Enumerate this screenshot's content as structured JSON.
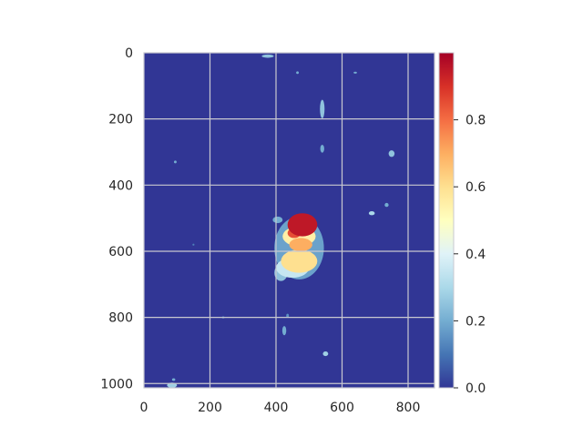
{
  "chart_data": {
    "type": "heatmap",
    "title": "",
    "xlabel": "",
    "ylabel": "",
    "xlim": [
      0,
      880
    ],
    "ylim": [
      1013,
      0
    ],
    "x_ticks": [
      0,
      200,
      400,
      600,
      800
    ],
    "y_ticks": [
      0,
      200,
      400,
      600,
      800,
      1000
    ],
    "x_tick_labels": [
      "0",
      "200",
      "400",
      "600",
      "800"
    ],
    "y_tick_labels": [
      "0",
      "200",
      "400",
      "600",
      "800",
      "1000"
    ],
    "grid": true,
    "colormap": "RdYlBu_r",
    "colorbar": {
      "vmin": 0.0,
      "vmax": 1.0,
      "ticks": [
        0.0,
        0.2,
        0.4,
        0.6,
        0.8
      ],
      "tick_labels": [
        "0.0",
        "0.2",
        "0.4",
        "0.6",
        "0.8"
      ]
    },
    "background_value": 0.0,
    "hotspots": [
      {
        "x": 480,
        "y": 520,
        "rx": 45,
        "ry": 35,
        "value": 0.95
      },
      {
        "x": 455,
        "y": 545,
        "rx": 20,
        "ry": 15,
        "value": 0.85
      },
      {
        "x": 475,
        "y": 580,
        "rx": 35,
        "ry": 20,
        "value": 0.7
      },
      {
        "x": 470,
        "y": 555,
        "rx": 50,
        "ry": 30,
        "value": 0.55
      },
      {
        "x": 470,
        "y": 630,
        "rx": 55,
        "ry": 35,
        "value": 0.6
      },
      {
        "x": 450,
        "y": 650,
        "rx": 50,
        "ry": 30,
        "value": 0.35
      },
      {
        "x": 470,
        "y": 590,
        "rx": 75,
        "ry": 95,
        "value": 0.18
      },
      {
        "x": 415,
        "y": 665,
        "rx": 20,
        "ry": 25,
        "value": 0.25
      },
      {
        "x": 405,
        "y": 505,
        "rx": 15,
        "ry": 10,
        "value": 0.2
      },
      {
        "x": 540,
        "y": 170,
        "rx": 7,
        "ry": 28,
        "value": 0.25
      },
      {
        "x": 540,
        "y": 290,
        "rx": 6,
        "ry": 12,
        "value": 0.2
      },
      {
        "x": 750,
        "y": 305,
        "rx": 9,
        "ry": 10,
        "value": 0.25
      },
      {
        "x": 690,
        "y": 485,
        "rx": 9,
        "ry": 6,
        "value": 0.3
      },
      {
        "x": 735,
        "y": 460,
        "rx": 6,
        "ry": 6,
        "value": 0.2
      },
      {
        "x": 375,
        "y": 10,
        "rx": 18,
        "ry": 5,
        "value": 0.25
      },
      {
        "x": 465,
        "y": 60,
        "rx": 4,
        "ry": 4,
        "value": 0.2
      },
      {
        "x": 640,
        "y": 60,
        "rx": 5,
        "ry": 3,
        "value": 0.2
      },
      {
        "x": 85,
        "y": 1005,
        "rx": 15,
        "ry": 8,
        "value": 0.28
      },
      {
        "x": 90,
        "y": 988,
        "rx": 5,
        "ry": 4,
        "value": 0.2
      },
      {
        "x": 425,
        "y": 840,
        "rx": 6,
        "ry": 14,
        "value": 0.2
      },
      {
        "x": 550,
        "y": 910,
        "rx": 8,
        "ry": 7,
        "value": 0.28
      },
      {
        "x": 95,
        "y": 330,
        "rx": 4,
        "ry": 4,
        "value": 0.2
      },
      {
        "x": 240,
        "y": 800,
        "rx": 4,
        "ry": 3,
        "value": 0.15
      },
      {
        "x": 435,
        "y": 795,
        "rx": 4,
        "ry": 6,
        "value": 0.15
      },
      {
        "x": 150,
        "y": 580,
        "rx": 3,
        "ry": 3,
        "value": 0.12
      }
    ]
  }
}
